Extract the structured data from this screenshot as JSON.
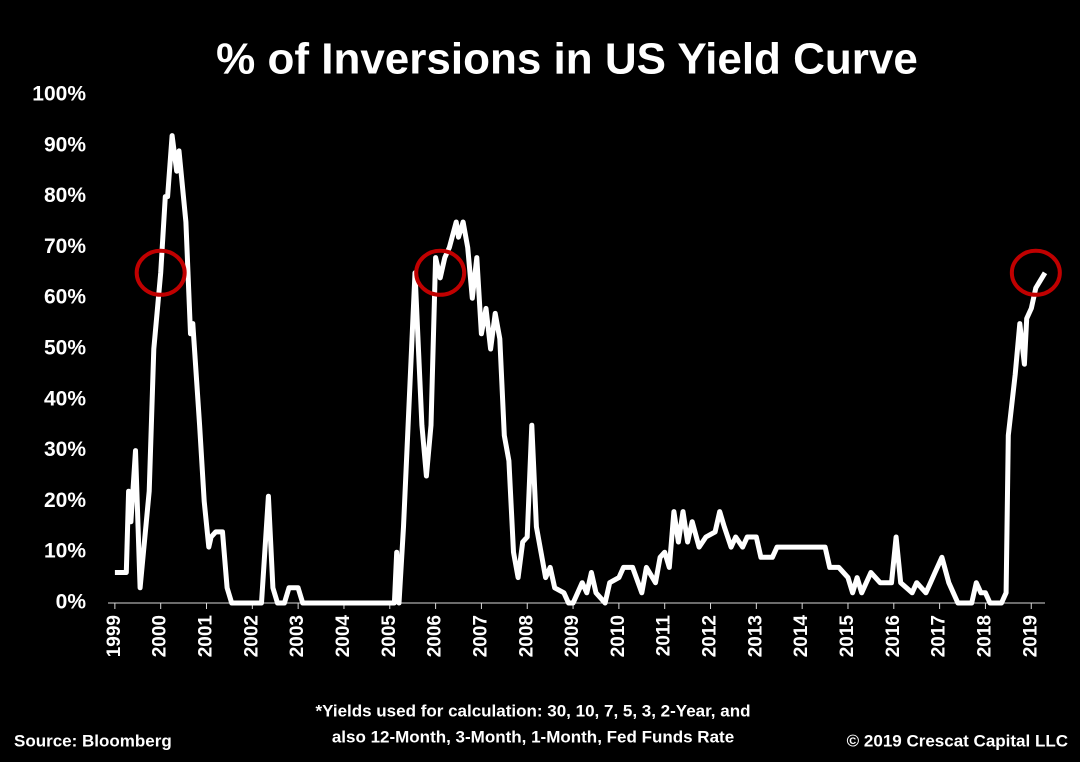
{
  "chart_data": {
    "type": "line",
    "title": "% of Inversions in US Yield Curve",
    "footnote": [
      "*Yields used for calculation: 30, 10, 7, 5, 3, 2-Year, and",
      "also 12-Month, 3-Month, 1-Month, Fed Funds Rate"
    ],
    "source": "Source: Bloomberg",
    "copyright": "© 2019 Crescat Capital LLC",
    "color": "#ffffff",
    "highlight_color": "#c00000",
    "highlights": [
      {
        "x": 2000.0,
        "y": 65
      },
      {
        "x": 2006.1,
        "y": 65
      },
      {
        "x": 2019.1,
        "y": 65
      }
    ],
    "x": [
      1999.0,
      1999.25,
      1999.3,
      1999.35,
      1999.45,
      1999.55,
      1999.75,
      1999.85,
      2000.0,
      2000.1,
      2000.15,
      2000.25,
      2000.35,
      2000.4,
      2000.55,
      2000.65,
      2000.7,
      2000.85,
      2000.95,
      2001.05,
      2001.1,
      2001.2,
      2001.35,
      2001.45,
      2001.55,
      2002.2,
      2002.35,
      2002.45,
      2002.55,
      2002.7,
      2002.8,
      2003.0,
      2003.1,
      2005.1,
      2005.15,
      2005.2,
      2005.3,
      2005.45,
      2005.55,
      2005.7,
      2005.8,
      2005.9,
      2006.0,
      2006.1,
      2006.2,
      2006.3,
      2006.45,
      2006.5,
      2006.6,
      2006.7,
      2006.8,
      2006.9,
      2007.0,
      2007.1,
      2007.2,
      2007.3,
      2007.4,
      2007.5,
      2007.6,
      2007.7,
      2007.8,
      2007.9,
      2008.0,
      2008.1,
      2008.2,
      2008.3,
      2008.4,
      2008.5,
      2008.6,
      2008.8,
      2008.9,
      2009.0,
      2009.2,
      2009.3,
      2009.4,
      2009.5,
      2009.7,
      2009.8,
      2010.0,
      2010.1,
      2010.3,
      2010.5,
      2010.6,
      2010.8,
      2010.9,
      2011.0,
      2011.1,
      2011.2,
      2011.3,
      2011.4,
      2011.5,
      2011.6,
      2011.75,
      2011.9,
      2012.1,
      2012.2,
      2012.3,
      2012.45,
      2012.55,
      2012.7,
      2012.8,
      2013.0,
      2013.1,
      2013.35,
      2013.45,
      2014.5,
      2014.6,
      2014.8,
      2015.0,
      2015.1,
      2015.2,
      2015.3,
      2015.5,
      2015.7,
      2015.95,
      2016.05,
      2016.15,
      2016.4,
      2016.5,
      2016.7,
      2016.8,
      2016.9,
      2017.05,
      2017.2,
      2017.4,
      2017.7,
      2017.8,
      2017.9,
      2018.0,
      2018.1,
      2018.35,
      2018.45,
      2018.5,
      2018.65,
      2018.75,
      2018.85,
      2018.9,
      2019.0,
      2019.1,
      2019.3
    ],
    "values": [
      6,
      6,
      22,
      16,
      30,
      3,
      22,
      50,
      65,
      80,
      80,
      92,
      85,
      89,
      75,
      53,
      55,
      35,
      20,
      11,
      13,
      14,
      14,
      3,
      0,
      0,
      21,
      3,
      0,
      0,
      3,
      3,
      0,
      0,
      10,
      0,
      15,
      45,
      65,
      35,
      25,
      35,
      68,
      64,
      68,
      70,
      75,
      72,
      75,
      70,
      60,
      68,
      53,
      58,
      50,
      57,
      52,
      33,
      28,
      10,
      5,
      12,
      13,
      35,
      15,
      10,
      5,
      7,
      3,
      2,
      0,
      0,
      4,
      2,
      6,
      2,
      0,
      4,
      5,
      7,
      7,
      2,
      7,
      4,
      9,
      10,
      7,
      18,
      12,
      18,
      12,
      16,
      11,
      13,
      14,
      18,
      15,
      11,
      13,
      11,
      13,
      13,
      9,
      9,
      11,
      11,
      7,
      7,
      5,
      2,
      5,
      2,
      6,
      4,
      4,
      13,
      4,
      2,
      4,
      2,
      4,
      6,
      9,
      4,
      0,
      0,
      4,
      2,
      2,
      0,
      0,
      2,
      33,
      45,
      55,
      47,
      56,
      58,
      62,
      65
    ],
    "xlim": [
      1998.85,
      2019.3
    ],
    "xticks": [
      1999,
      2000,
      2001,
      2002,
      2003,
      2004,
      2005,
      2006,
      2007,
      2008,
      2009,
      2010,
      2011,
      2012,
      2013,
      2014,
      2015,
      2016,
      2017,
      2018,
      2019
    ],
    "ylim": [
      0,
      100
    ],
    "yticks": [
      {
        "value": 0,
        "label": "0%"
      },
      {
        "value": 10,
        "label": "10%"
      },
      {
        "value": 20,
        "label": "20%"
      },
      {
        "value": 30,
        "label": "30%"
      },
      {
        "value": 40,
        "label": "40%"
      },
      {
        "value": 50,
        "label": "50%"
      },
      {
        "value": 60,
        "label": "60%"
      },
      {
        "value": 70,
        "label": "70%"
      },
      {
        "value": 80,
        "label": "80%"
      },
      {
        "value": 90,
        "label": "90%"
      },
      {
        "value": 100,
        "label": "100%"
      }
    ]
  }
}
